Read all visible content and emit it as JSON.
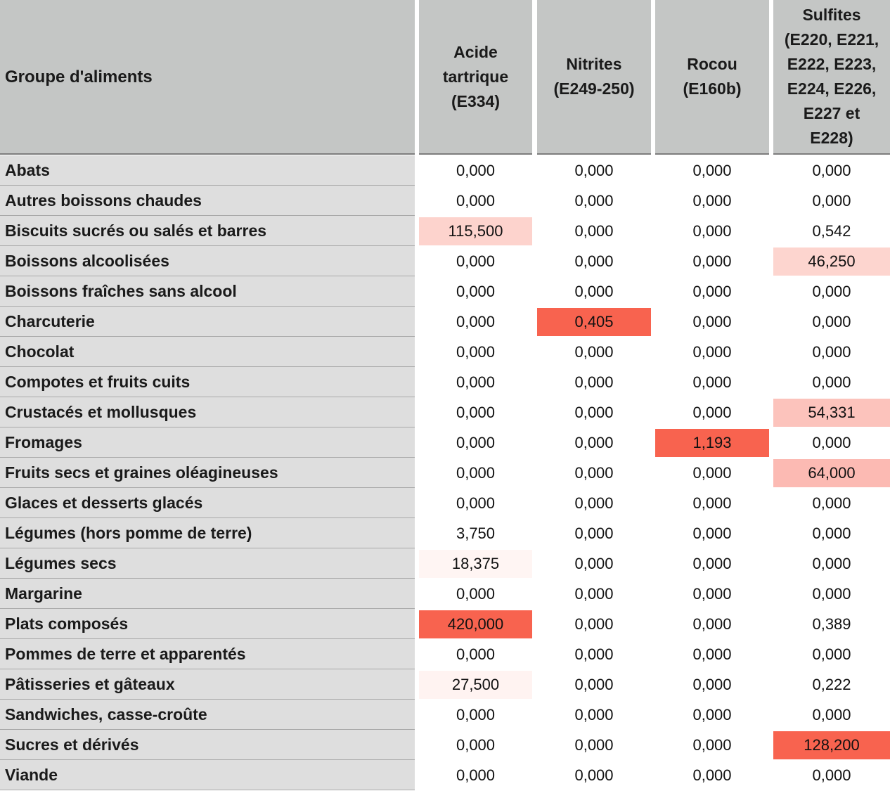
{
  "table": {
    "headers": [
      "Groupe d'aliments",
      "Acide\ntartrique\n(E334)",
      "Nitrites\n(E249-250)",
      "Rocou\n(E160b)",
      "Sulfites\n(E220, E221,\nE222, E223,\nE224, E226,\nE227 et\nE228)"
    ],
    "rows": [
      {
        "label": "Abats",
        "values": [
          "0,000",
          "0,000",
          "0,000",
          "0,000"
        ],
        "shades": [
          "",
          "",
          "",
          ""
        ]
      },
      {
        "label": "Autres boissons chaudes",
        "values": [
          "0,000",
          "0,000",
          "0,000",
          "0,000"
        ],
        "shades": [
          "",
          "",
          "",
          ""
        ]
      },
      {
        "label": "Biscuits sucrés ou salés et barres",
        "values": [
          "115,500",
          "0,000",
          "0,000",
          "0,542"
        ],
        "shades": [
          "#fdd3cd",
          "",
          "",
          ""
        ]
      },
      {
        "label": "Boissons alcoolisées",
        "values": [
          "0,000",
          "0,000",
          "0,000",
          "46,250"
        ],
        "shades": [
          "",
          "",
          "",
          "#fdd5cf"
        ]
      },
      {
        "label": "Boissons fraîches sans alcool",
        "values": [
          "0,000",
          "0,000",
          "0,000",
          "0,000"
        ],
        "shades": [
          "",
          "",
          "",
          ""
        ]
      },
      {
        "label": "Charcuterie",
        "values": [
          "0,000",
          "0,405",
          "0,000",
          "0,000"
        ],
        "shades": [
          "",
          "#f8634f",
          "",
          ""
        ]
      },
      {
        "label": "Chocolat",
        "values": [
          "0,000",
          "0,000",
          "0,000",
          "0,000"
        ],
        "shades": [
          "",
          "",
          "",
          ""
        ]
      },
      {
        "label": "Compotes et fruits cuits",
        "values": [
          "0,000",
          "0,000",
          "0,000",
          "0,000"
        ],
        "shades": [
          "",
          "",
          "",
          ""
        ]
      },
      {
        "label": "Crustacés et mollusques",
        "values": [
          "0,000",
          "0,000",
          "0,000",
          "54,331"
        ],
        "shades": [
          "",
          "",
          "",
          "#fcc3bc"
        ]
      },
      {
        "label": "Fromages",
        "values": [
          "0,000",
          "0,000",
          "1,193",
          "0,000"
        ],
        "shades": [
          "",
          "",
          "#f8634f",
          ""
        ]
      },
      {
        "label": "Fruits secs et graines oléagineuses",
        "values": [
          "0,000",
          "0,000",
          "0,000",
          "64,000"
        ],
        "shades": [
          "",
          "",
          "",
          "#fcbab3"
        ]
      },
      {
        "label": "Glaces et desserts glacés",
        "values": [
          "0,000",
          "0,000",
          "0,000",
          "0,000"
        ],
        "shades": [
          "",
          "",
          "",
          ""
        ]
      },
      {
        "label": "Légumes (hors pomme de terre)",
        "values": [
          "3,750",
          "0,000",
          "0,000",
          "0,000"
        ],
        "shades": [
          "",
          "",
          "",
          ""
        ]
      },
      {
        "label": "Légumes secs",
        "values": [
          "18,375",
          "0,000",
          "0,000",
          "0,000"
        ],
        "shades": [
          "#fff5f3",
          "",
          "",
          ""
        ]
      },
      {
        "label": "Margarine",
        "values": [
          "0,000",
          "0,000",
          "0,000",
          "0,000"
        ],
        "shades": [
          "",
          "",
          "",
          ""
        ]
      },
      {
        "label": "Plats composés",
        "values": [
          "420,000",
          "0,000",
          "0,000",
          "0,389"
        ],
        "shades": [
          "#f8634f",
          "",
          "",
          ""
        ]
      },
      {
        "label": "Pommes de terre et apparentés",
        "values": [
          "0,000",
          "0,000",
          "0,000",
          "0,000"
        ],
        "shades": [
          "",
          "",
          "",
          ""
        ]
      },
      {
        "label": "Pâtisseries et gâteaux",
        "values": [
          "27,500",
          "0,000",
          "0,000",
          "0,222"
        ],
        "shades": [
          "#fff3f1",
          "",
          "",
          ""
        ]
      },
      {
        "label": "Sandwiches, casse-croûte",
        "values": [
          "0,000",
          "0,000",
          "0,000",
          "0,000"
        ],
        "shades": [
          "",
          "",
          "",
          ""
        ]
      },
      {
        "label": "Sucres et dérivés",
        "values": [
          "0,000",
          "0,000",
          "0,000",
          "128,200"
        ],
        "shades": [
          "",
          "",
          "",
          "#f8634f"
        ]
      },
      {
        "label": "Viande",
        "values": [
          "0,000",
          "0,000",
          "0,000",
          "0,000"
        ],
        "shades": [
          "",
          "",
          "",
          ""
        ]
      }
    ]
  }
}
